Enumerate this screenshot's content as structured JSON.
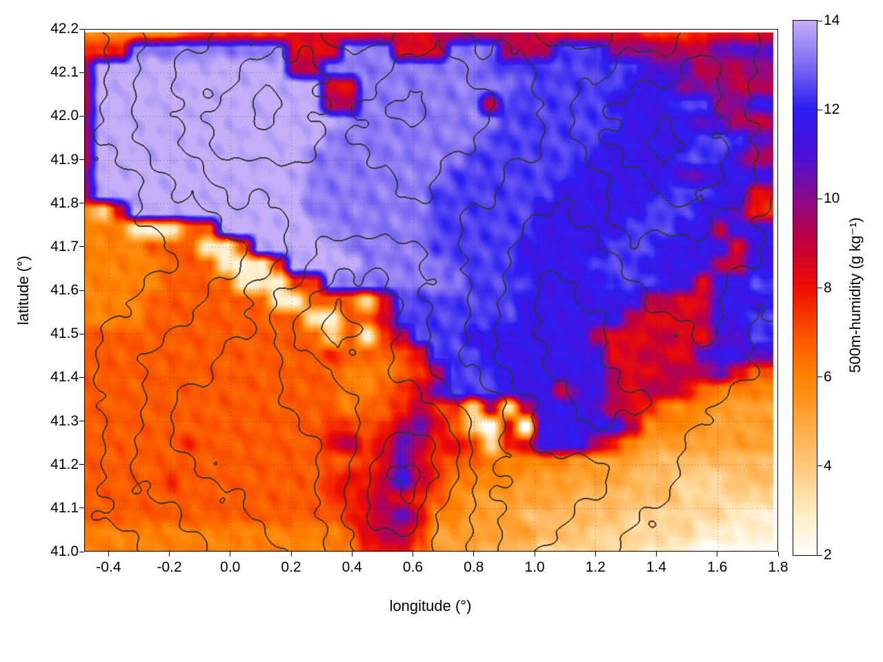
{
  "chart_data": {
    "type": "heatmap",
    "title": "",
    "xlabel": "longitude (°)",
    "ylabel": "latitude (°)",
    "colorbar_label": "500m-humidity (g kg⁻¹)",
    "x_range": [
      -0.48,
      1.8
    ],
    "y_range": [
      41.0,
      42.2
    ],
    "field_x_range": [
      -0.48,
      1.785
    ],
    "field_y_range": [
      41.0,
      42.192
    ],
    "x_ticks": [
      "-0.4",
      "-0.2",
      "0.0",
      "0.2",
      "0.4",
      "0.6",
      "0.8",
      "1.0",
      "1.2",
      "1.4",
      "1.6",
      "1.8"
    ],
    "x_tick_values": [
      -0.4,
      -0.2,
      0.0,
      0.2,
      0.4,
      0.6,
      0.8,
      1.0,
      1.2,
      1.4,
      1.6,
      1.8
    ],
    "y_ticks": [
      "41.0",
      "41.1",
      "41.2",
      "41.3",
      "41.4",
      "41.5",
      "41.6",
      "41.7",
      "41.8",
      "41.9",
      "42.0",
      "42.1",
      "42.2"
    ],
    "y_tick_values": [
      41.0,
      41.1,
      41.2,
      41.3,
      41.4,
      41.5,
      41.6,
      41.7,
      41.8,
      41.9,
      42.0,
      42.1,
      42.2
    ],
    "cb_ticks": [
      "2",
      "4",
      "6",
      "8",
      "10",
      "12",
      "14"
    ],
    "cb_tick_values": [
      2,
      4,
      6,
      8,
      10,
      12,
      14
    ],
    "cb_range": [
      2,
      14
    ],
    "grid": true,
    "palette": [
      [
        2,
        "#ffffff"
      ],
      [
        3,
        "#ffeac0"
      ],
      [
        4,
        "#ffc97e"
      ],
      [
        5,
        "#ffa73c"
      ],
      [
        6,
        "#ff8300"
      ],
      [
        7,
        "#fb5000"
      ],
      [
        8,
        "#ef0e00"
      ],
      [
        9,
        "#c3003c"
      ],
      [
        10,
        "#8b0b8b"
      ],
      [
        11,
        "#4a10d8"
      ],
      [
        12,
        "#2c1cf2"
      ],
      [
        13,
        "#7e6cf3"
      ],
      [
        14,
        "#c3aef7"
      ]
    ],
    "humidity_encoding": {
      "chars": "0123456789abcdef",
      "min": 2,
      "step": 0.8
    },
    "humidity_grid": [
      "5555557777778888888899999988888877778888",
      "777eeeeeeeee888eee888eee999dddaaa999bbbb",
      "9fffffffffff99eeeeeeeeedddddddddbbb999aa",
      "9fffffffffffff88eeeeeeeeeddddddcccaaa999",
      "9fffffffffffff99eeeeeee9ddddddccccddaacc",
      "9ffffffffffffffeeeeeeeeedddddddccccbb999",
      "9fffffffffffffeeeeeeeeedddddddcccccdddbb",
      "9ffffffffffffeeeeeeeeedddddddcccccdddb99",
      "affffffffffffeeeeeeeedddddddccccccbbcccc",
      "9ffffffffffffeeeeeeedddddddccccccdddcc88",
      "528ffffffffffeeeeeeeddddddccccccdddccb77",
      "55511166ffffffeeeeeeddddddcccccdddcc9ccc",
      "5555666116fffffeeeeedddddcccccdddcccc8cc",
      "555556661117ffffeeeeeddddccccdddcccc99cc",
      "55555666611177eeeeeeeeddddccccdddcc8ccdd",
      "555566666661166628dddddddccccccc9988cccc",
      "555566666666611668dddddddcccccc98889ccdd",
      "6666666666666626179dddccccccc9888988bbdd",
      "66666666666666766668dddccccccc88988bccbb",
      "666666666666666555679dddcccccc988999b866",
      "66666666666666655678bdddccc9bc9899865555",
      "66666666666666656679772929cccb9875554444",
      "6666666666666677679b862080ccccc955544444",
      "666666766666668978b9787278ccc97544444444",
      "666666666666666678b876655555444433333333",
      "666667666666667879c975555444444333222333",
      "6666666666666677898765444444333333222222",
      "666666666666666789b855444333333222222111",
      "5555555555555556899744444433322222211111",
      "5555555555555555788644433322222211100000"
    ],
    "terrain_grid": [
      "23445554455443344554",
      "23455665566554455654",
      "23456765676654566654",
      "23456665666554567654",
      "22345555565544456654",
      "12334455555443455543",
      "12233456665433344443",
      "22334567765432334433",
      "23344578765432233432",
      "23445567765432233332",
      "23455566776543223322",
      "23455556787543333222",
      "23445556897544433221",
      "23344556886544332211",
      "22334456776543322111"
    ],
    "contour_levels": [
      2.5,
      3.5,
      4.5,
      5.5,
      6.5,
      7.5,
      8.5
    ],
    "contour_color": "#333333",
    "grid_line_color": "rgba(40,40,40,0.55)"
  }
}
